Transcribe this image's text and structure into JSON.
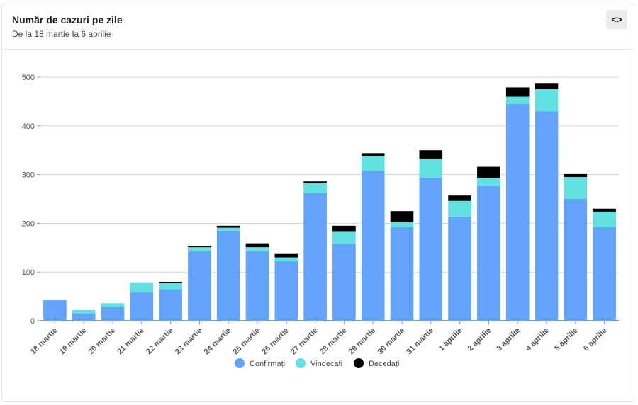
{
  "card": {
    "title": "Număr de cazuri pe zile",
    "subtitle": "De la 18 martie la 6 aprilie",
    "embed_icon": "<>"
  },
  "chart_data": {
    "type": "bar",
    "stacked": true,
    "categories": [
      "18 martie",
      "19 martie",
      "20 martie",
      "21 martie",
      "22 martie",
      "23 martie",
      "24 martie",
      "25 martie",
      "26 martie",
      "27 martie",
      "28 martie",
      "29 martie",
      "30 martie",
      "31 martie",
      "1 aprilie",
      "2 aprilie",
      "3 aprilie",
      "4 aprilie",
      "5 aprilie",
      "6 aprilie"
    ],
    "series": [
      {
        "name": "Confirmați",
        "color": "#64a3fb",
        "values": [
          42,
          15,
          29,
          58,
          65,
          143,
          185,
          143,
          122,
          262,
          158,
          308,
          192,
          293,
          214,
          277,
          445,
          430,
          250,
          193
        ]
      },
      {
        "name": "Vindecați",
        "color": "#63e0e1",
        "values": [
          0,
          7,
          7,
          21,
          13,
          8,
          6,
          8,
          8,
          21,
          26,
          30,
          10,
          40,
          32,
          16,
          15,
          46,
          45,
          31
        ]
      },
      {
        "name": "Decedați",
        "color": "#000000",
        "values": [
          0,
          0,
          0,
          0,
          2,
          2,
          4,
          8,
          7,
          3,
          11,
          6,
          23,
          17,
          11,
          23,
          19,
          12,
          6,
          6
        ]
      }
    ],
    "yticks": [
      0,
      100,
      200,
      300,
      400,
      500
    ],
    "ylim": [
      0,
      500
    ],
    "legend_position": "bottom-center"
  }
}
